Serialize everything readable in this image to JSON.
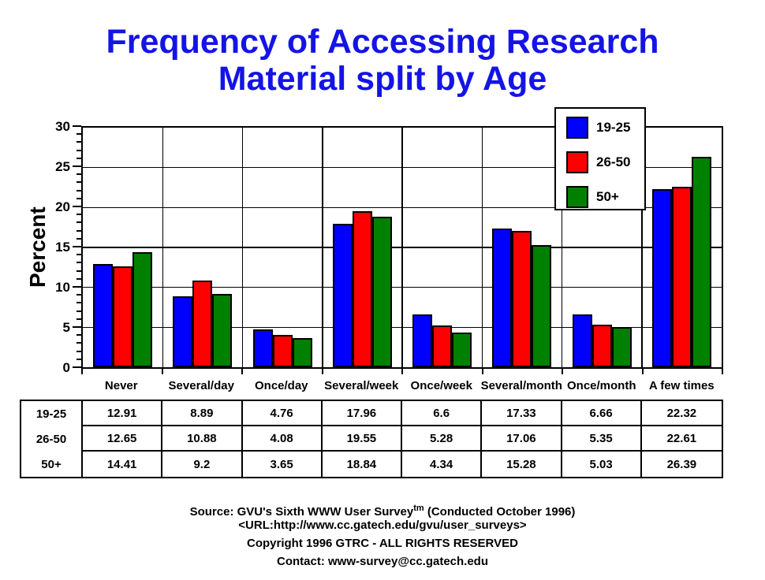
{
  "title": {
    "line1": "Frequency of Accessing Research",
    "line2": "Material split by Age",
    "color": "#1414E6"
  },
  "chart_data": {
    "type": "bar",
    "title": "Frequency of Accessing Research Material split by Age",
    "categories": [
      "Never",
      "Several/day",
      "Once/day",
      "Several/week",
      "Once/week",
      "Several/month",
      "Once/month",
      "A few times"
    ],
    "series": [
      {
        "name": "19-25",
        "color": "#0000FF",
        "values": [
          12.91,
          8.89,
          4.76,
          17.96,
          6.6,
          17.33,
          6.66,
          22.32
        ]
      },
      {
        "name": "26-50",
        "color": "#FF0000",
        "values": [
          12.65,
          10.88,
          4.08,
          19.55,
          5.28,
          17.06,
          5.35,
          22.61
        ]
      },
      {
        "name": "50+",
        "color": "#008000",
        "values": [
          14.41,
          9.2,
          3.65,
          18.84,
          4.34,
          15.28,
          5.03,
          26.39
        ]
      }
    ],
    "xlabel": "",
    "ylabel": "Percent",
    "ylim": [
      0,
      30
    ],
    "yticks": [
      0,
      5,
      10,
      15,
      20,
      25,
      30
    ],
    "minor_tick_step": 1,
    "grid": true,
    "legend_position": "top-right"
  },
  "table": {
    "row_labels": [
      "19-25",
      "26-50",
      "50+"
    ],
    "columns": [
      "Never",
      "Several/day",
      "Once/day",
      "Several/week",
      "Once/week",
      "Several/month",
      "Once/month",
      "A few times"
    ],
    "rows": [
      [
        "12.91",
        "8.89",
        "4.76",
        "17.96",
        "6.6",
        "17.33",
        "6.66",
        "22.32"
      ],
      [
        "12.65",
        "10.88",
        "4.08",
        "19.55",
        "5.28",
        "17.06",
        "5.35",
        "22.61"
      ],
      [
        "14.41",
        "9.2",
        "3.65",
        "18.84",
        "4.34",
        "15.28",
        "5.03",
        "26.39"
      ]
    ]
  },
  "footer": {
    "line1_pre": "Source: GVU's Sixth WWW User Survey",
    "line1_sup": "tm",
    "line1_post": " (Conducted October 1996)",
    "line2": "<URL:http://www.cc.gatech.edu/gvu/user_surveys>",
    "line3": "Copyright 1996 GTRC -  ALL RIGHTS RESERVED",
    "line4": "Contact: www-survey@cc.gatech.edu"
  }
}
